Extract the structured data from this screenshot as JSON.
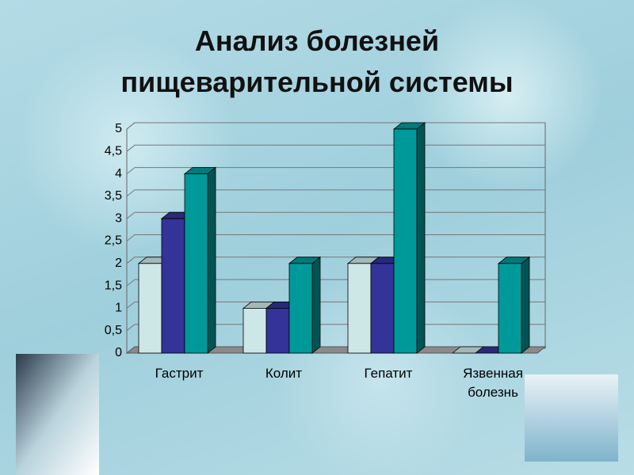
{
  "chart_data": {
    "type": "bar3d",
    "title": "Анализ болезней пищеварительной системы",
    "categories": [
      "Гастрит",
      "Колит",
      "Гепатит",
      "Язвенная болезнь"
    ],
    "series": [
      {
        "color": "#cde6e6",
        "values": [
          2,
          1,
          2,
          0
        ]
      },
      {
        "color": "#333399",
        "values": [
          3,
          1,
          2,
          0
        ]
      },
      {
        "color": "#009999",
        "values": [
          4,
          2,
          5,
          2
        ]
      }
    ],
    "ylim": [
      0,
      5
    ],
    "yticks": [
      0,
      {
        "value": 0.5,
        "label": "0,5"
      },
      1,
      {
        "value": 1.5,
        "label": "1,5"
      },
      2,
      {
        "value": 2.5,
        "label": "2,5"
      },
      3,
      {
        "value": 3.5,
        "label": "3,5"
      },
      4,
      {
        "value": 4.5,
        "label": "4,5"
      },
      5
    ],
    "grid": true
  }
}
